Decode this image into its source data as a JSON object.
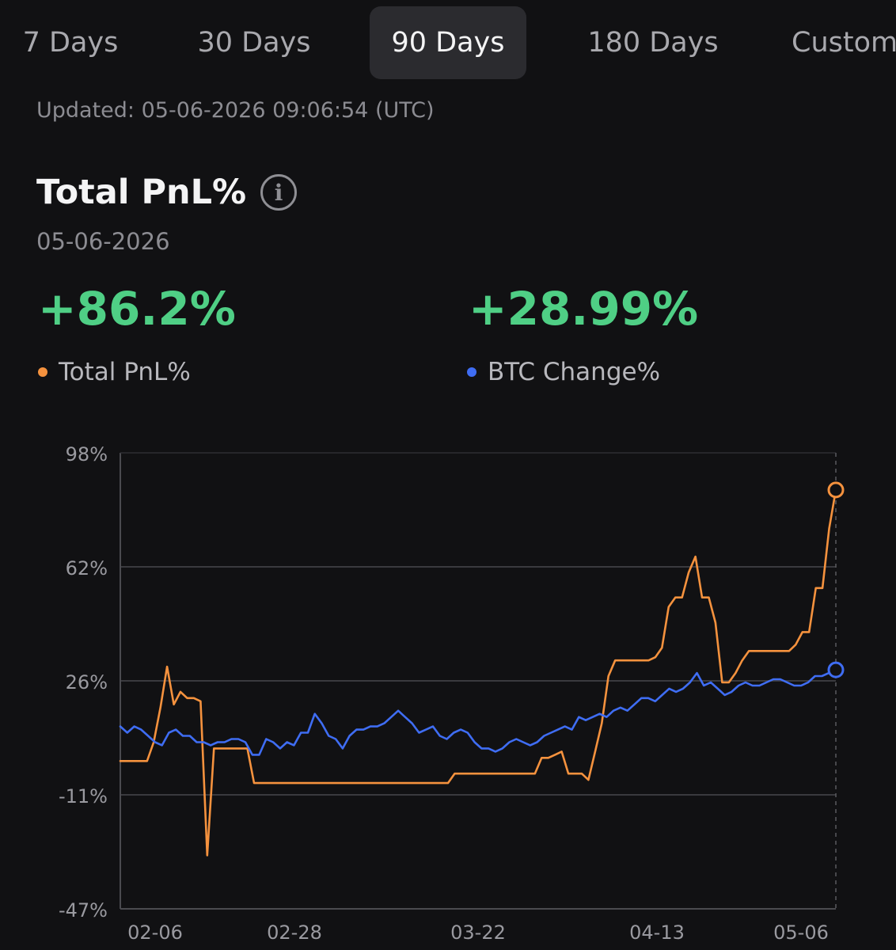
{
  "tabs": [
    {
      "label": "7 Days",
      "active": false
    },
    {
      "label": "30 Days",
      "active": false
    },
    {
      "label": "90 Days",
      "active": true
    },
    {
      "label": "180 Days",
      "active": false
    },
    {
      "label": "Custom",
      "active": false
    }
  ],
  "updated_text": "Updated: 05-06-2026 09:06:54 (UTC)",
  "title": "Total PnL%",
  "date": "05-06-2026",
  "metrics": [
    {
      "value": "+86.2%",
      "legend": "Total PnL%",
      "color": "#f5923e"
    },
    {
      "value": "+28.99%",
      "legend": "BTC Change%",
      "color": "#3f6df3"
    }
  ],
  "colors": {
    "positive": "#4fcf85",
    "background": "#111113",
    "grid": "#3a3a3e"
  },
  "icons": {
    "info": "info-circle-icon"
  },
  "chart_data": {
    "type": "line",
    "x_tick_labels": [
      "02-06",
      "02-28",
      "03-22",
      "04-13",
      "05-06"
    ],
    "y_tick_labels": [
      "98%",
      "62%",
      "26%",
      "-11%",
      "-47%"
    ],
    "ylim": [
      -47,
      98
    ],
    "grid": true,
    "series": [
      {
        "name": "Total PnL%",
        "color": "#f5923e",
        "values": [
          0,
          0,
          0,
          0,
          0,
          6,
          17,
          30,
          18,
          22,
          20,
          20,
          19,
          -30,
          4,
          4,
          4,
          4,
          4,
          4,
          -7,
          -7,
          -7,
          -7,
          -7,
          -7,
          -7,
          -7,
          -7,
          -7,
          -7,
          -7,
          -7,
          -7,
          -7,
          -7,
          -7,
          -7,
          -7,
          -7,
          -7,
          -7,
          -7,
          -7,
          -7,
          -7,
          -7,
          -7,
          -7,
          -7,
          -4,
          -4,
          -4,
          -4,
          -4,
          -4,
          -4,
          -4,
          -4,
          -4,
          -4,
          -4,
          -4,
          1,
          1,
          2,
          3,
          -4,
          -4,
          -4,
          -6,
          3,
          12,
          27,
          32,
          32,
          32,
          32,
          32,
          32,
          33,
          36,
          49,
          52,
          52,
          60,
          65,
          52,
          52,
          44,
          25,
          25,
          28,
          32,
          35,
          35,
          35,
          35,
          35,
          35,
          35,
          37,
          41,
          41,
          55,
          55,
          74,
          86.2
        ],
        "end_value": 86.2
      },
      {
        "name": "BTC Change%",
        "color": "#3f6df3",
        "values": [
          11,
          9,
          11,
          10,
          8,
          6,
          5,
          9,
          10,
          8,
          8,
          6,
          6,
          5,
          6,
          6,
          7,
          7,
          6,
          2,
          2,
          7,
          6,
          4,
          6,
          5,
          9,
          9,
          15,
          12,
          8,
          7,
          4,
          8,
          10,
          10,
          11,
          11,
          12,
          14,
          16,
          14,
          12,
          9,
          10,
          11,
          8,
          7,
          9,
          10,
          9,
          6,
          4,
          4,
          3,
          4,
          6,
          7,
          6,
          5,
          6,
          8,
          9,
          10,
          11,
          10,
          14,
          13,
          14,
          15,
          14,
          16,
          17,
          16,
          18,
          20,
          20,
          19,
          21,
          23,
          22,
          23,
          25,
          28,
          24,
          25,
          23,
          21,
          22,
          24,
          25,
          24,
          24,
          25,
          26,
          26,
          25,
          24,
          24,
          25,
          27,
          27,
          28,
          28.99
        ],
        "end_value": 28.99
      }
    ]
  }
}
